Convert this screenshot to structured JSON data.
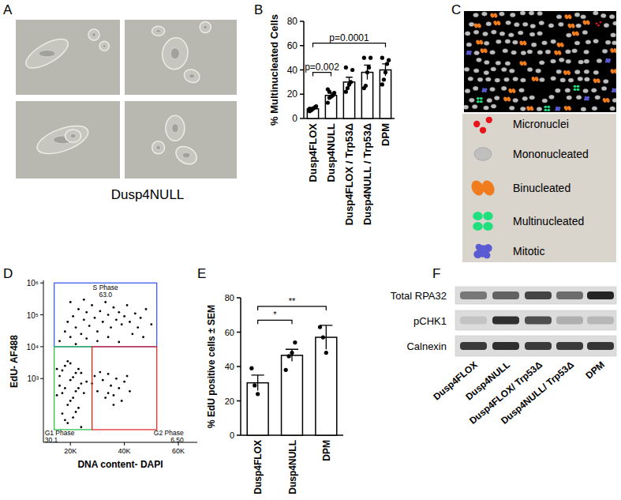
{
  "panel_labels": [
    "A",
    "B",
    "C",
    "D",
    "E",
    "F"
  ],
  "panel_a": {
    "caption": "Dusp4NULL"
  },
  "chart_data": [
    {
      "type": "bar",
      "categories": [
        "Dusp4FLOX",
        "Dusp4NULL",
        "Dusp4FLOX / Trp53Δ",
        "Dusp4NULL / Trp53Δ",
        "DPM"
      ],
      "values": [
        8,
        19,
        30,
        38,
        40
      ],
      "errors": [
        1,
        2,
        4,
        6,
        5
      ],
      "points": [
        [
          6,
          7,
          8,
          9,
          10,
          8,
          7
        ],
        [
          13,
          17,
          18,
          19,
          21,
          24,
          22
        ],
        [
          22,
          25,
          28,
          30,
          40,
          42
        ],
        [
          25,
          27,
          38,
          42,
          50,
          50
        ],
        [
          28,
          32,
          38,
          45,
          48,
          50
        ]
      ],
      "color": "#ffffff",
      "ylabel": "% Multinucleated Cells",
      "ylim": [
        0,
        80
      ],
      "yticks": [
        0,
        20,
        40,
        60,
        80
      ],
      "annotations": [
        {
          "text": "p=0.002",
          "from": 0,
          "to": 1,
          "y": 38
        },
        {
          "text": "p=0.0001",
          "from": 0,
          "to": 4,
          "y": 62
        }
      ]
    },
    {
      "type": "scatter",
      "xlabel": "DNA content- DAPI",
      "ylabel": "EdU- AF488",
      "log": "y",
      "color": "#000000",
      "marker": "dot",
      "xlim": [
        10000,
        67000
      ],
      "ylim": [
        10,
        1200000
      ],
      "xticks": [
        {
          "value": 20000,
          "label": "20K"
        },
        {
          "value": 40000,
          "label": "40K"
        },
        {
          "value": 60000,
          "label": "60K"
        }
      ],
      "yticks": [
        {
          "value": 1000,
          "label": "10³"
        },
        {
          "value": 10000,
          "label": "10⁴"
        },
        {
          "value": 100000,
          "label": "10⁵"
        },
        {
          "value": 1000000,
          "label": "10⁶"
        }
      ],
      "x": [
        15000,
        16000,
        17000,
        18000,
        18000,
        19000,
        19000,
        20000,
        20000,
        21000,
        21000,
        22000,
        22000,
        23000,
        23000,
        24000,
        24000,
        25000,
        16000,
        17000,
        19000,
        20000,
        21000,
        22000,
        23000,
        18000,
        24000,
        26000,
        15000,
        17000,
        30000,
        32000,
        33000,
        34000,
        35000,
        36000,
        37000,
        38000,
        39000,
        40000,
        41000,
        36000,
        34000,
        31000,
        42000,
        28000,
        29000,
        16000,
        18000,
        19000,
        20000,
        21000,
        22000,
        23000,
        24000,
        25000,
        26000,
        27000,
        28000,
        29000,
        30000,
        31000,
        32000,
        33000,
        34000,
        35000,
        36000,
        37000,
        38000,
        39000,
        40000,
        41000,
        42000,
        44000,
        45000,
        46000,
        48000,
        50000,
        22000,
        26000,
        30000,
        34000,
        38000,
        20000,
        25000,
        43000,
        47000
      ],
      "values": [
        300,
        1200,
        80,
        2500,
        500,
        150,
        40,
        900,
        3000,
        250,
        60,
        1500,
        400,
        120,
        2000,
        700,
        30,
        350,
        600,
        1800,
        3500,
        200,
        1100,
        90,
        500,
        50,
        1500,
        800,
        2000,
        350,
        400,
        900,
        250,
        1400,
        600,
        300,
        1000,
        500,
        200,
        800,
        1200,
        150,
        350,
        1600,
        400,
        700,
        1200,
        15000,
        30000,
        60000,
        20000,
        90000,
        40000,
        150000,
        25000,
        70000,
        120000,
        45000,
        200000,
        80000,
        30000,
        130000,
        60000,
        250000,
        100000,
        40000,
        170000,
        70000,
        120000,
        50000,
        90000,
        200000,
        60000,
        110000,
        40000,
        80000,
        150000,
        50000,
        12000,
        18000,
        15000,
        20000,
        14000,
        250000,
        300000,
        25000,
        20000
      ],
      "gates": [
        {
          "name": "S Phase",
          "value": 63,
          "value_label": "63.0",
          "color": "#2f4ff0",
          "x": [
            14000,
            52000
          ],
          "y": [
            10000,
            1000000
          ]
        },
        {
          "name": "G1 Phase",
          "value": 30.1,
          "value_label": "30.1",
          "color": "#1fbf3f",
          "x": [
            14000,
            28000
          ],
          "y": [
            25,
            10000
          ]
        },
        {
          "name": "G2 Phase",
          "value": 6.5,
          "value_label": "6.50",
          "color": "#e02020",
          "x": [
            28000,
            52000
          ],
          "y": [
            25,
            10000
          ]
        }
      ]
    },
    {
      "type": "bar",
      "categories": [
        "Dusp4FLOX",
        "Dusp4NULL",
        "DPM"
      ],
      "values": [
        30.5,
        46.5,
        57
      ],
      "errors": [
        4.5,
        3.5,
        7
      ],
      "points": [
        [
          39,
          29,
          24
        ],
        [
          38,
          46,
          48,
          54
        ],
        [
          63,
          57,
          48
        ]
      ],
      "color": "#ffffff",
      "ylabel": "% EdU positive cells ± SEM",
      "ylim": [
        0,
        80
      ],
      "yticks": [
        0,
        20,
        40,
        60,
        80
      ],
      "annotations": [
        {
          "text": "*",
          "from": 0,
          "to": 1,
          "y": 67
        },
        {
          "text": "**",
          "from": 0,
          "to": 2,
          "y": 75
        }
      ]
    }
  ],
  "panel_c": {
    "legend": [
      {
        "label": "Micronuclei",
        "color": "#e8141c"
      },
      {
        "label": "Mononucleated",
        "color": "#bfbfbf"
      },
      {
        "label": "Binucleated",
        "color": "#f07c1e"
      },
      {
        "label": "Multinucleated",
        "color": "#1fe07c"
      },
      {
        "label": "Mitotic",
        "color": "#5a5ad2"
      }
    ]
  },
  "panel_f": {
    "lanes": [
      "Dusp4FLOX",
      "Dusp4NULL",
      "Dusp4FLOX/ Trp53Δ",
      "Dusp4NULL/ Trp53Δ",
      "DPM"
    ],
    "rows": [
      {
        "label": "Total RPA32",
        "values": [
          0.5,
          0.6,
          0.75,
          0.55,
          0.9
        ]
      },
      {
        "label": "pCHK1",
        "values": [
          0.12,
          0.85,
          0.7,
          0.22,
          0.18
        ]
      },
      {
        "label": "Calnexin",
        "values": [
          0.8,
          0.85,
          0.8,
          0.8,
          0.82
        ]
      }
    ]
  }
}
